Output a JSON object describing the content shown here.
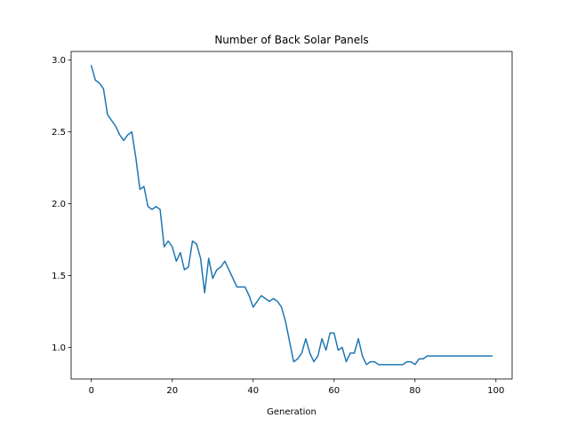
{
  "chart_data": {
    "type": "line",
    "title": "Number of Back Solar Panels",
    "xlabel": "Generation",
    "ylabel": "",
    "xlim": [
      -5,
      104
    ],
    "ylim": [
      0.78,
      3.06
    ],
    "xticks": [
      0,
      20,
      40,
      60,
      80,
      100
    ],
    "yticks": [
      1.0,
      1.5,
      2.0,
      2.5,
      3.0
    ],
    "xtick_labels": [
      "0",
      "20",
      "40",
      "60",
      "80",
      "100"
    ],
    "ytick_labels": [
      "1.0",
      "1.5",
      "2.0",
      "2.5",
      "3.0"
    ],
    "grid": false,
    "line_color": "#1f77b4",
    "series": [
      {
        "x": [
          0,
          1,
          2,
          3,
          4,
          5,
          6,
          7,
          8,
          9,
          10,
          11,
          12,
          13,
          14,
          15,
          16,
          17,
          18,
          19,
          20,
          21,
          22,
          23,
          24,
          25,
          26,
          27,
          28,
          29,
          30,
          31,
          32,
          33,
          34,
          35,
          36,
          37,
          38,
          39,
          40,
          41,
          42,
          43,
          44,
          45,
          46,
          47,
          48,
          49,
          50,
          51,
          52,
          53,
          54,
          55,
          56,
          57,
          58,
          59,
          60,
          61,
          62,
          63,
          64,
          65,
          66,
          67,
          68,
          69,
          70,
          71,
          72,
          73,
          74,
          75,
          76,
          77,
          78,
          79,
          80,
          81,
          82,
          83,
          84,
          85,
          86,
          87,
          88,
          89,
          90,
          91,
          92,
          93,
          94,
          95,
          96,
          97,
          98,
          99
        ],
        "values": [
          2.96,
          2.86,
          2.84,
          2.8,
          2.62,
          2.58,
          2.54,
          2.48,
          2.44,
          2.48,
          2.5,
          2.32,
          2.1,
          2.12,
          1.98,
          1.96,
          1.98,
          1.96,
          1.7,
          1.74,
          1.7,
          1.6,
          1.66,
          1.54,
          1.56,
          1.74,
          1.72,
          1.62,
          1.38,
          1.62,
          1.48,
          1.54,
          1.56,
          1.6,
          1.54,
          1.48,
          1.42,
          1.42,
          1.42,
          1.36,
          1.28,
          1.32,
          1.36,
          1.34,
          1.32,
          1.34,
          1.32,
          1.28,
          1.18,
          1.04,
          0.9,
          0.92,
          0.96,
          1.06,
          0.96,
          0.9,
          0.94,
          1.06,
          0.98,
          1.1,
          1.1,
          0.98,
          1.0,
          0.9,
          0.96,
          0.96,
          1.06,
          0.94,
          0.88,
          0.9,
          0.9,
          0.88,
          0.88,
          0.88,
          0.88,
          0.88,
          0.88,
          0.88,
          0.9,
          0.9,
          0.88,
          0.92,
          0.92,
          0.94,
          0.94,
          0.94,
          0.94,
          0.94,
          0.94,
          0.94,
          0.94,
          0.94,
          0.94,
          0.94,
          0.94,
          0.94,
          0.94,
          0.94,
          0.94,
          0.94
        ]
      }
    ]
  }
}
